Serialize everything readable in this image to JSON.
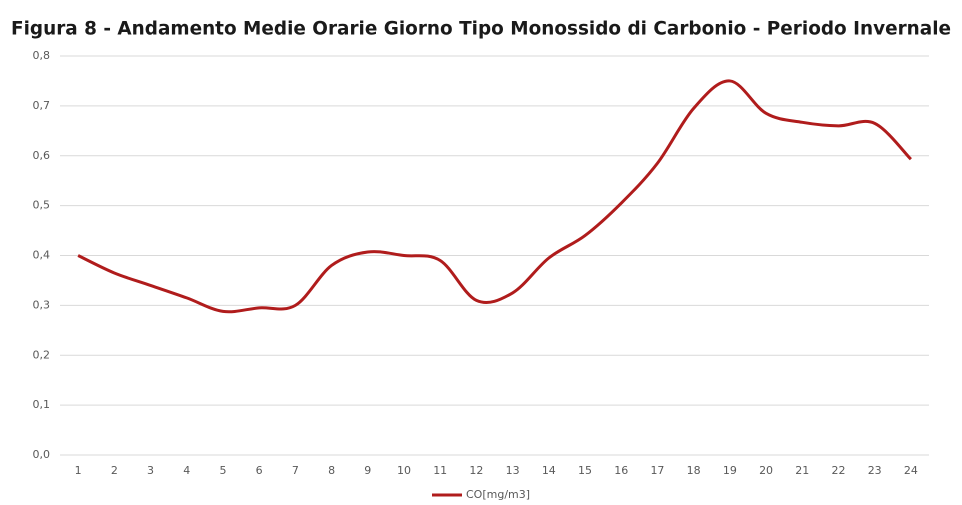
{
  "chart_data": {
    "type": "line",
    "title": "Figura 8 - Andamento Medie Orarie Giorno Tipo Monossido di Carbonio - Periodo Invernale",
    "categories": [
      "1",
      "2",
      "3",
      "4",
      "5",
      "6",
      "7",
      "8",
      "9",
      "10",
      "11",
      "12",
      "13",
      "14",
      "15",
      "16",
      "17",
      "18",
      "19",
      "20",
      "21",
      "22",
      "23",
      "24"
    ],
    "series": [
      {
        "name": "CO[mg/m3]",
        "color": "#b01c1c",
        "values": [
          0.4,
          0.365,
          0.34,
          0.315,
          0.288,
          0.295,
          0.3,
          0.38,
          0.407,
          0.4,
          0.39,
          0.31,
          0.325,
          0.395,
          0.44,
          0.505,
          0.585,
          0.695,
          0.75,
          0.685,
          0.667,
          0.66,
          0.665,
          0.593
        ]
      }
    ],
    "ylim": [
      0,
      0.8
    ],
    "yticks": [
      {
        "value": 0,
        "label": "0,0"
      },
      {
        "value": 0.1,
        "label": "0,1"
      },
      {
        "value": 0.2,
        "label": "0,2"
      },
      {
        "value": 0.3,
        "label": "0,3"
      },
      {
        "value": 0.4,
        "label": "0,4"
      },
      {
        "value": 0.5,
        "label": "0,5"
      },
      {
        "value": 0.6,
        "label": "0,6"
      },
      {
        "value": 0.7,
        "label": "0,7"
      },
      {
        "value": 0.8,
        "label": "0,8"
      }
    ],
    "grid": true,
    "smooth": true,
    "legend": "bottom"
  }
}
